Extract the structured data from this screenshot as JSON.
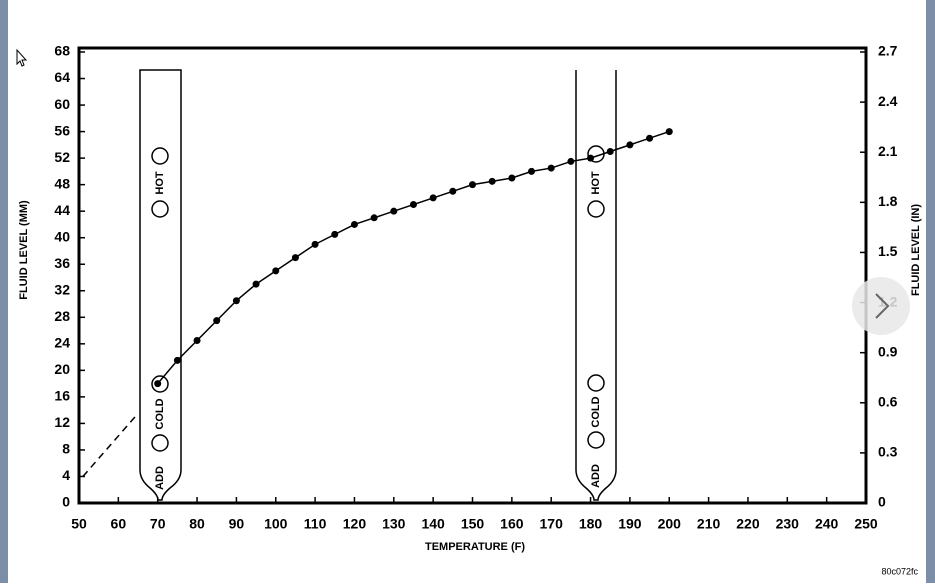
{
  "chart_data": {
    "type": "line",
    "ylabel": "FLUID LEVEL (MM)",
    "y2label": "FLUID LEVEL (IN)",
    "xlabel": "TEMPERATURE (F)",
    "code": "80c072fc",
    "annotations": {
      "hot": "HOT",
      "cold": "COLD",
      "add": "ADD"
    },
    "xlim": [
      50,
      250
    ],
    "xticks": [
      50,
      60,
      70,
      80,
      90,
      100,
      110,
      120,
      130,
      140,
      150,
      160,
      170,
      180,
      190,
      200,
      210,
      220,
      230,
      240,
      250
    ],
    "ylim": [
      0,
      68
    ],
    "yticks": [
      0,
      4,
      8,
      12,
      16,
      20,
      24,
      28,
      32,
      36,
      40,
      44,
      48,
      52,
      56,
      60,
      64,
      68
    ],
    "y2lim": [
      0,
      2.7
    ],
    "y2ticks": [
      0,
      0.3,
      0.6,
      0.9,
      1.2,
      1.5,
      1.8,
      2.1,
      2.4,
      2.7
    ],
    "series": [
      {
        "color": "#000000",
        "markers": true,
        "dashed": false,
        "x": [
          70,
          75,
          80,
          85,
          90,
          95,
          100,
          105,
          110,
          115,
          120,
          125,
          130,
          135,
          140,
          145,
          150,
          155,
          160,
          165,
          170,
          175,
          180,
          185,
          190,
          195,
          200
        ],
        "values": [
          18,
          21.5,
          24.5,
          27.5,
          30.5,
          33,
          35,
          37,
          39,
          40.5,
          42,
          43,
          44,
          45,
          46,
          47,
          48,
          48.5,
          49,
          50,
          50.5,
          51.5,
          52,
          53,
          54,
          55,
          56
        ]
      },
      {
        "color": "#000000",
        "markers": false,
        "dashed": true,
        "x": [
          51,
          65
        ],
        "values": [
          4,
          13.5
        ]
      }
    ]
  }
}
